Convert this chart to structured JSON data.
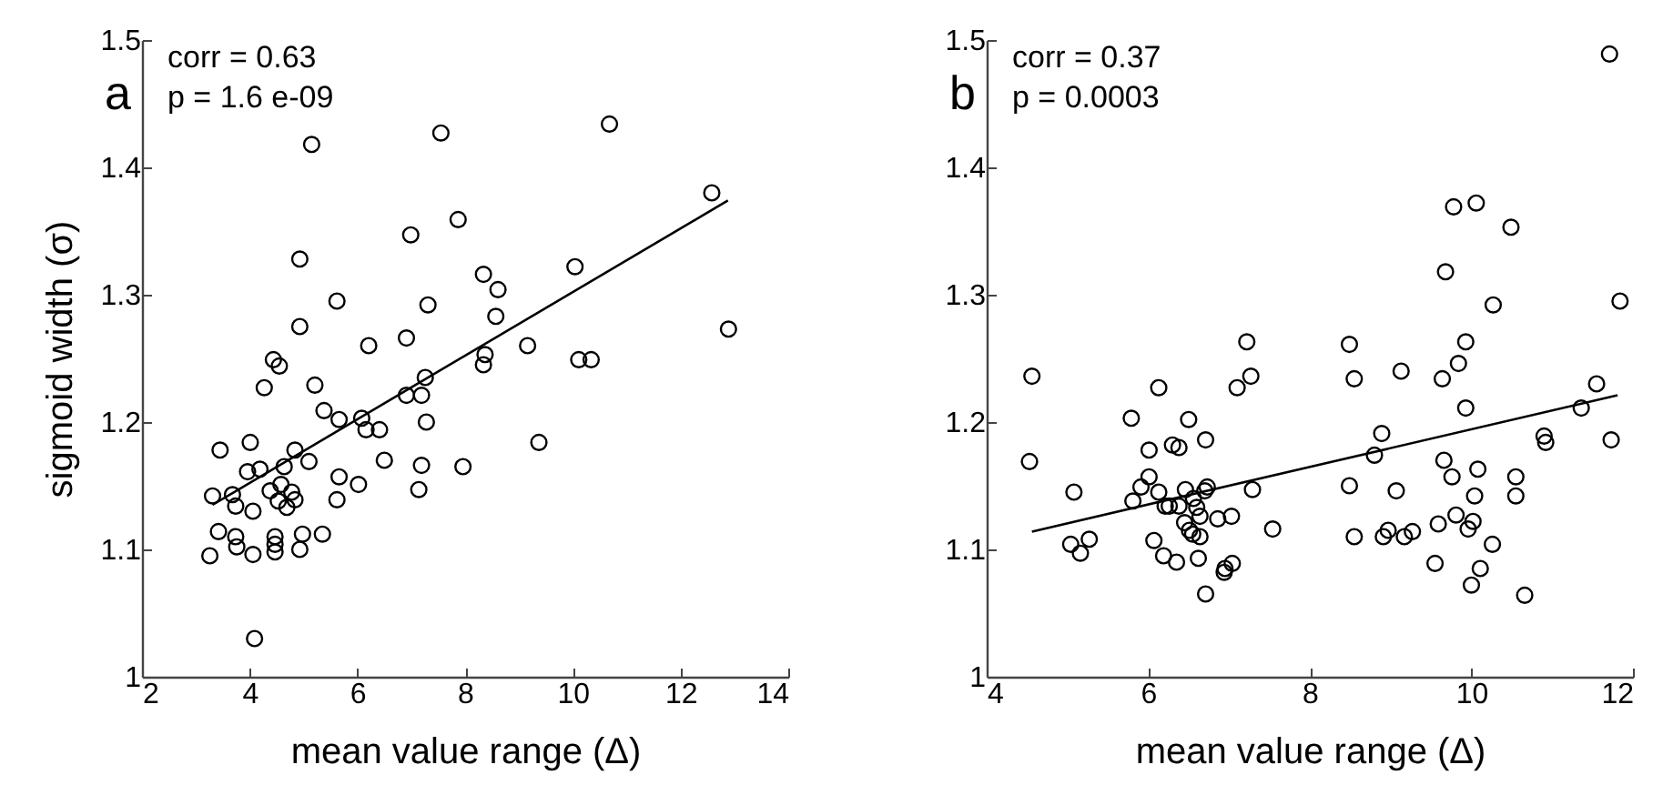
{
  "chart_data": [
    {
      "type": "scatter",
      "title": "a",
      "xlabel": "mean value range (Δ)",
      "ylabel": "sigmoid width (σ)",
      "annotations": [
        "corr = 0.63",
        "p = 1.6 e-09"
      ],
      "xlim": [
        2,
        14
      ],
      "ylim": [
        1,
        1.5
      ],
      "xticks": [
        2,
        4,
        6,
        8,
        10,
        12,
        14
      ],
      "yticks": [
        1,
        1.1,
        1.2,
        1.3,
        1.4,
        1.5
      ],
      "series": [
        {
          "marker": "circle",
          "color": "#000000",
          "x": [
            5.15,
            7.55,
            10.68,
            12.58,
            7.87,
            6.99,
            4.93,
            10.04,
            8.34,
            8.61,
            5.62,
            7.31,
            8.57,
            4.93,
            12.89,
            6.21,
            6.91,
            9.16,
            8.37,
            8.34,
            10.11,
            10.34,
            4.44,
            4.55,
            7.26,
            4.27,
            5.21,
            6.91,
            7.19,
            5.38,
            5.66,
            6.08,
            6.16,
            6.41,
            7.28,
            9.37,
            4.01,
            3.45,
            4.84,
            5.1,
            6.5,
            7.19,
            7.96,
            3.96,
            4.19,
            4.64,
            5.66,
            6.02,
            7.14,
            4.58,
            3.31,
            3.68,
            3.74,
            4.38,
            4.53,
            4.78,
            4.84,
            4.69,
            4.06,
            5.62,
            3.42,
            3.74,
            3.76,
            4.47,
            4.47,
            4.47,
            4.98,
            5.35,
            4.93,
            4.06,
            3.26,
            4.09
          ],
          "values": [
            1.418,
            1.427,
            1.434,
            1.38,
            1.359,
            1.347,
            1.328,
            1.322,
            1.316,
            1.304,
            1.295,
            1.292,
            1.283,
            1.275,
            1.273,
            1.26,
            1.266,
            1.26,
            1.253,
            1.245,
            1.249,
            1.249,
            1.249,
            1.244,
            1.235,
            1.227,
            1.229,
            1.221,
            1.221,
            1.209,
            1.202,
            1.203,
            1.194,
            1.194,
            1.2,
            1.184,
            1.184,
            1.178,
            1.178,
            1.169,
            1.17,
            1.166,
            1.165,
            1.161,
            1.163,
            1.165,
            1.157,
            1.151,
            1.147,
            1.151,
            1.142,
            1.143,
            1.134,
            1.146,
            1.138,
            1.145,
            1.139,
            1.133,
            1.13,
            1.139,
            1.114,
            1.11,
            1.102,
            1.11,
            1.104,
            1.098,
            1.112,
            1.112,
            1.1,
            1.096,
            1.095,
            1.03
          ]
        },
        {
          "type": "line",
          "color": "#000000",
          "x": [
            3.31,
            12.88
          ],
          "values": [
            1.135,
            1.374
          ]
        }
      ]
    },
    {
      "type": "scatter",
      "title": "b",
      "xlabel": "mean value range (Δ)",
      "annotations": [
        "corr = 0.37",
        "p = 0.0003"
      ],
      "xlim": [
        4,
        12
      ],
      "ylim": [
        1,
        1.5
      ],
      "xticks": [
        4,
        6,
        8,
        10,
        12
      ],
      "yticks": [
        1,
        1.1,
        1.2,
        1.3,
        1.4,
        1.5
      ],
      "series": [
        {
          "marker": "circle",
          "color": "#000000",
          "x": [
            11.71,
            9.78,
            10.06,
            10.49,
            9.68,
            10.27,
            11.84,
            9.93,
            9.84,
            9.64,
            7.22,
            8.49,
            7.27,
            8.55,
            9.13,
            4.56,
            6.13,
            7.1,
            11.55,
            11.36,
            9.93,
            10.9,
            10.92,
            11.73,
            9.66,
            9.76,
            10.08,
            10.55,
            10.04,
            10.55,
            9.59,
            9.81,
            10.02,
            9.96,
            10.26,
            9.55,
            10.11,
            10.0,
            10.66,
            4.53,
            5.08,
            5.04,
            5.16,
            5.27,
            5.79,
            6.01,
            5.81,
            5.91,
            6.01,
            6.13,
            6.21,
            6.26,
            6.07,
            6.19,
            6.35,
            6.3,
            6.38,
            6.5,
            6.71,
            6.38,
            6.46,
            6.56,
            6.6,
            6.45,
            6.51,
            6.55,
            6.64,
            6.64,
            6.7,
            6.73,
            6.62,
            6.86,
            7.03,
            6.95,
            7.04,
            6.94,
            6.71,
            7.29,
            7.54,
            8.49,
            8.55,
            8.8,
            8.89,
            9.07,
            8.91,
            8.97,
            9.17,
            9.27
          ],
          "values": [
            1.489,
            1.369,
            1.372,
            1.353,
            1.318,
            1.292,
            1.295,
            1.263,
            1.246,
            1.234,
            1.263,
            1.261,
            1.236,
            1.234,
            1.24,
            1.236,
            1.227,
            1.227,
            1.23,
            1.211,
            1.211,
            1.189,
            1.184,
            1.186,
            1.17,
            1.157,
            1.163,
            1.157,
            1.142,
            1.142,
            1.12,
            1.127,
            1.122,
            1.116,
            1.104,
            1.089,
            1.085,
            1.072,
            1.064,
            1.169,
            1.145,
            1.104,
            1.097,
            1.108,
            1.203,
            1.178,
            1.138,
            1.149,
            1.157,
            1.145,
            1.134,
            1.134,
            1.107,
            1.095,
            1.09,
            1.182,
            1.18,
            1.202,
            1.186,
            1.134,
            1.147,
            1.14,
            1.133,
            1.121,
            1.115,
            1.112,
            1.126,
            1.11,
            1.146,
            1.149,
            1.093,
            1.124,
            1.126,
            1.085,
            1.089,
            1.082,
            1.065,
            1.147,
            1.116,
            1.15,
            1.11,
            1.174,
            1.191,
            1.146,
            1.11,
            1.115,
            1.11,
            1.114
          ]
        },
        {
          "type": "line",
          "color": "#000000",
          "x": [
            4.56,
            11.81
          ],
          "values": [
            1.114,
            1.221
          ]
        }
      ]
    }
  ]
}
